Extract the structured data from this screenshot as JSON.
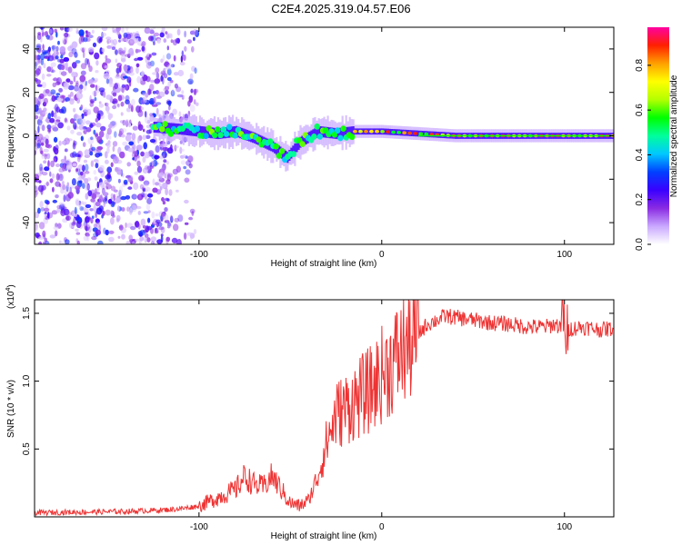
{
  "title": "C2E4.2025.319.04.57.E06",
  "chart_data": [
    {
      "type": "heatmap",
      "name": "spectrogram",
      "xlabel": "Height of straight line (km)",
      "ylabel": "Frequency (Hz)",
      "xlim": [
        -190,
        127
      ],
      "ylim": [
        -50,
        50
      ],
      "xticks": [
        -100,
        0,
        100
      ],
      "xtick_labels": [
        "-100",
        "0",
        "100"
      ],
      "yticks": [
        -40,
        -20,
        0,
        20,
        40
      ],
      "ytick_labels": [
        "-40",
        "-20",
        "0",
        "20",
        "40"
      ],
      "colorbar": {
        "label": "Normalized spectral amplitude",
        "range": [
          0,
          0.97
        ],
        "ticks": [
          0.0,
          0.2,
          0.4,
          0.6,
          0.8
        ],
        "tick_labels": [
          "0.0",
          "0.2",
          "0.4",
          "0.6",
          "0.8"
        ],
        "colormap": [
          "#ffffff",
          "#c9a8ff",
          "#8a2be2",
          "#3a00ff",
          "#0040ff",
          "#00c8ff",
          "#00ff9c",
          "#00ff00",
          "#b4ff00",
          "#ffff00",
          "#ffa000",
          "#ff2000",
          "#ff00a0"
        ]
      },
      "noise_region_x": [
        -190,
        -105
      ],
      "track": [
        {
          "x": -125,
          "y": 4
        },
        {
          "x": -110,
          "y": 3
        },
        {
          "x": -100,
          "y": 2
        },
        {
          "x": -90,
          "y": 1
        },
        {
          "x": -80,
          "y": 2
        },
        {
          "x": -70,
          "y": -1
        },
        {
          "x": -60,
          "y": -5
        },
        {
          "x": -52,
          "y": -10
        },
        {
          "x": -45,
          "y": -3
        },
        {
          "x": -35,
          "y": 2
        },
        {
          "x": -25,
          "y": 1
        },
        {
          "x": -15,
          "y": 2
        },
        {
          "x": 0,
          "y": 2
        },
        {
          "x": 20,
          "y": 1
        },
        {
          "x": 40,
          "y": 0
        },
        {
          "x": 60,
          "y": 0
        },
        {
          "x": 80,
          "y": 0
        },
        {
          "x": 100,
          "y": 0
        },
        {
          "x": 127,
          "y": 0
        }
      ]
    },
    {
      "type": "line",
      "name": "snr",
      "xlabel": "Height of straight line (km)",
      "ylabel": "SNR (10 * v/v)",
      "y_multiplier_label": "(x10",
      "y_multiplier_exp": "4",
      "y_multiplier_close": ")",
      "xlim": [
        -190,
        127
      ],
      "ylim": [
        0,
        1.6
      ],
      "xticks": [
        -100,
        0,
        100
      ],
      "xtick_labels": [
        "-100",
        "0",
        "100"
      ],
      "yticks": [
        0.5,
        1.0,
        1.5
      ],
      "ytick_labels": [
        "0.5",
        "1.0",
        "1.5"
      ],
      "color": "#ee3333",
      "series": [
        {
          "name": "SNR",
          "x": [
            -190,
            -140,
            -120,
            -110,
            -100,
            -90,
            -80,
            -75,
            -70,
            -65,
            -60,
            -55,
            -50,
            -45,
            -40,
            -35,
            -30,
            -25,
            -20,
            -15,
            -10,
            -5,
            0,
            5,
            10,
            15,
            20,
            25,
            30,
            35,
            40,
            50,
            60,
            70,
            80,
            90,
            95,
            100,
            110,
            120,
            127
          ],
          "y": [
            0.03,
            0.04,
            0.05,
            0.06,
            0.08,
            0.14,
            0.2,
            0.3,
            0.24,
            0.22,
            0.3,
            0.2,
            0.1,
            0.08,
            0.12,
            0.3,
            0.55,
            0.75,
            0.8,
            0.85,
            0.9,
            0.95,
            1.05,
            1.12,
            1.2,
            1.28,
            1.35,
            1.42,
            1.45,
            1.48,
            1.47,
            1.45,
            1.43,
            1.42,
            1.4,
            1.4,
            1.42,
            1.38,
            1.4,
            1.38,
            1.39
          ]
        }
      ]
    }
  ]
}
